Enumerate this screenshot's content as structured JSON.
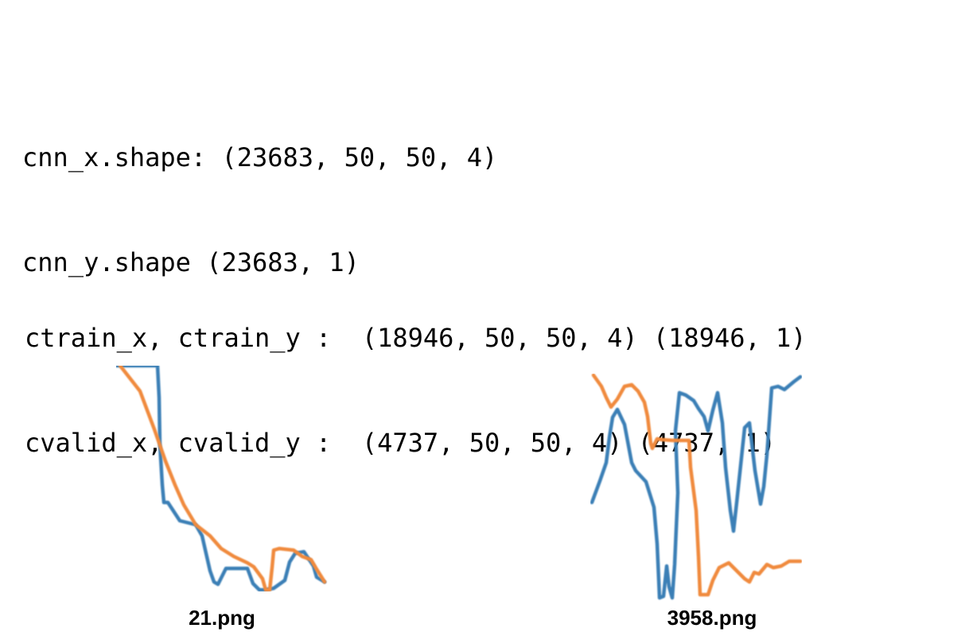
{
  "output": {
    "shape_lines": [
      "cnn_x.shape: (23683, 50, 50, 4)",
      "cnn_y.shape (23683, 1)"
    ],
    "split_lines": [
      "ctrain_x, ctrain_y :  (18946, 50, 50, 4) (18946, 1)",
      "cvalid_x, cvalid_y :  (4737, 50, 50, 4) (4737, 1)"
    ]
  },
  "images": [
    {
      "caption": "21.png",
      "colors": {
        "series_a": "#3b7fb6",
        "series_b": "#f08a3c"
      }
    },
    {
      "caption": "3958.png",
      "colors": {
        "series_a": "#3b7fb6",
        "series_b": "#f08a3c"
      }
    }
  ]
}
